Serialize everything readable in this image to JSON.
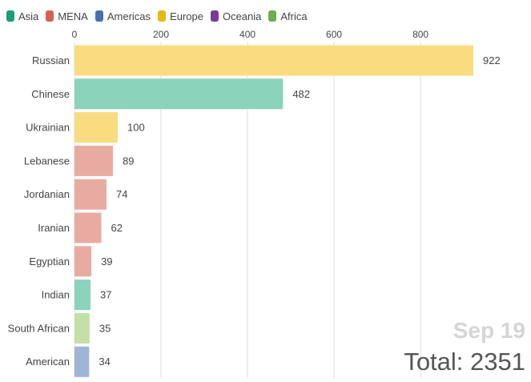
{
  "legend": [
    {
      "label": "Asia",
      "color": "#1a9e77"
    },
    {
      "label": "MENA",
      "color": "#d95f52"
    },
    {
      "label": "Americas",
      "color": "#4a6fb0"
    },
    {
      "label": "Europe",
      "color": "#e8b716"
    },
    {
      "label": "Oceania",
      "color": "#7b3a96"
    },
    {
      "label": "Africa",
      "color": "#6ab04c"
    }
  ],
  "overlay": {
    "date": "Sep 19",
    "total_prefix": "Total: ",
    "total_value": "2351"
  },
  "chart_data": {
    "type": "bar",
    "orientation": "horizontal",
    "categories": [
      "Russian",
      "Chinese",
      "Ukrainian",
      "Lebanese",
      "Jordanian",
      "Iranian",
      "Egyptian",
      "Indian",
      "South African",
      "American"
    ],
    "values": [
      922,
      482,
      100,
      89,
      74,
      62,
      39,
      37,
      35,
      34
    ],
    "regions": [
      "Europe",
      "Asia",
      "Europe",
      "MENA",
      "MENA",
      "MENA",
      "MENA",
      "Asia",
      "Africa",
      "Americas"
    ],
    "bar_colors": [
      "#f9dc80",
      "#8bd3bb",
      "#f9dc80",
      "#e8aba2",
      "#e8aba2",
      "#e8aba2",
      "#e8aba2",
      "#8bd3bb",
      "#c3e0a8",
      "#9fb4d7"
    ],
    "xlim": [
      0,
      922
    ],
    "xticks": [
      0,
      200,
      400,
      600,
      800
    ],
    "grid": true,
    "title": "",
    "xlabel": "",
    "ylabel": ""
  }
}
